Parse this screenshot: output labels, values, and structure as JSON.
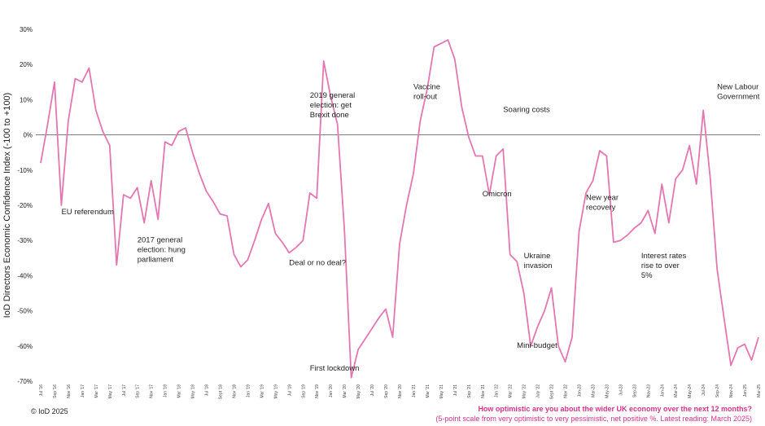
{
  "chart_data": {
    "type": "line",
    "ylabel": "IoD Directors Economic Confidence Index (-100 to +100)",
    "ylim": [
      -70,
      30
    ],
    "yticks": [
      "30%",
      "20%",
      "10%",
      "0%",
      "-10%",
      "-20%",
      "-30%",
      "-40%",
      "-50%",
      "-60%",
      "-70%"
    ],
    "ytick_values": [
      30,
      20,
      10,
      0,
      -10,
      -20,
      -30,
      -40,
      -50,
      -60,
      -70
    ],
    "line_color": "#e377b2",
    "x_tick_labels": [
      "Jul '16",
      "Sep '16",
      "Nov '16",
      "Jan '17",
      "Mar '17",
      "May '17",
      "Jul '17",
      "Sep '17",
      "Nov '17",
      "Jan '18",
      "Mar '18",
      "May '18",
      "Jul '18",
      "Sept '18",
      "Nov '18",
      "Jan '19",
      "Mar '19",
      "May '19",
      "Jul '19",
      "Sep '19",
      "Nov '19",
      "Jan '20",
      "Mar '20",
      "May '20",
      "Jul '20",
      "Sep '20",
      "Nov '20",
      "Jan '21",
      "Mar '21",
      "May '21",
      "Jul '21",
      "Sep '21",
      "Nov '21",
      "Jan '22",
      "Mar '22",
      "May '22",
      "July '22",
      "Sept '22",
      "Nov '22",
      "Jan-23",
      "Mar-23",
      "May-23",
      "Jul-23",
      "Sep-23",
      "Nov-23",
      "Jan-24",
      "Mar-24",
      "May-24",
      "Jul-24",
      "Sep-24",
      "Nov-24",
      "Jan-25",
      "Mar-25"
    ],
    "series": [
      {
        "values": [
          -8,
          3,
          15,
          -20,
          4,
          16,
          15,
          19,
          7,
          1,
          -3,
          -37,
          -17,
          -18,
          -15,
          -25,
          -13,
          -24,
          -2,
          -3,
          1,
          2,
          -5,
          -11,
          -16,
          -19,
          -22.5,
          -23,
          -34,
          -37.5,
          -35.5,
          -30,
          -24,
          -19.5,
          -28,
          -30.5,
          -33.5,
          -32,
          -30,
          -16.5,
          -18,
          21,
          11,
          3,
          -27,
          -69,
          -61,
          -58,
          -55,
          -52,
          -49.5,
          -57.5,
          -31,
          -20,
          -11,
          4,
          13,
          25,
          26,
          27,
          21.5,
          8,
          -0.5,
          -6,
          -6,
          -17,
          -6,
          -4,
          -34,
          -36,
          -45,
          -60,
          -54.5,
          -50,
          -43.5,
          -60,
          -64.5,
          -57.5,
          -27.5,
          -16.5,
          -13,
          -4.5,
          -6,
          -30.5,
          -30,
          -28.5,
          -26.5,
          -25,
          -21.5,
          -28,
          -14,
          -25,
          -12.5,
          -10,
          -3,
          -14,
          7,
          -12,
          -38,
          -52,
          -65.5,
          -60.5,
          -59.5,
          -64,
          -57.5
        ]
      }
    ],
    "annotations": [
      {
        "lines": [
          "EU referendum"
        ],
        "index": 3,
        "value": -22.5
      },
      {
        "lines": [
          "2017 general",
          "election: hung",
          "parliament"
        ],
        "index": 14,
        "value": -30.5
      },
      {
        "lines": [
          "Deal or no deal?"
        ],
        "index": 36,
        "value": -37
      },
      {
        "lines": [
          "2019 general",
          "election: get",
          "Brexit done"
        ],
        "index": 39,
        "value": 10.5
      },
      {
        "lines": [
          "First lockdown"
        ],
        "index": 39,
        "value": -67
      },
      {
        "lines": [
          "Vaccine",
          "roll-out"
        ],
        "index": 54,
        "value": 13
      },
      {
        "lines": [
          "Soaring costs"
        ],
        "index": 67,
        "value": 6.5
      },
      {
        "lines": [
          "Omicron"
        ],
        "index": 64,
        "value": -17.5
      },
      {
        "lines": [
          "Ukraine",
          "invasion"
        ],
        "index": 70,
        "value": -35
      },
      {
        "lines": [
          "Mini-budget"
        ],
        "index": 69,
        "value": -60.5
      },
      {
        "lines": [
          "New year",
          "recovery"
        ],
        "index": 79,
        "value": -18.5
      },
      {
        "lines": [
          "Interest rates",
          "rise to over",
          "5%"
        ],
        "index": 87,
        "value": -35
      },
      {
        "lines": [
          "New Labour",
          "Government"
        ],
        "index": 98,
        "value": 13
      }
    ]
  },
  "footer": {
    "copyright": "© IoD 2025",
    "question": "How optimistic are you about the wider UK economy over the next 12 months?",
    "subtitle": "(5-point scale from very optimistic to very pessimistic, net positive %. Latest reading: March 2025)"
  }
}
